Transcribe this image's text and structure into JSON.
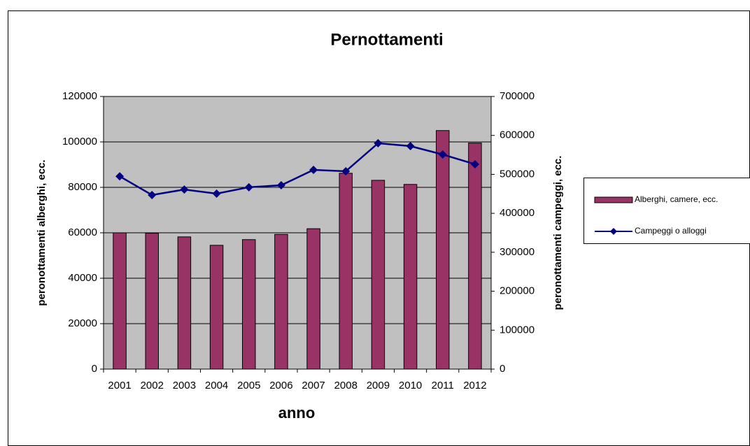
{
  "chart_data": {
    "type": "bar",
    "title": "Pernottamenti",
    "x_label": "anno",
    "y_label": "peronottamenti alberghi, ecc.",
    "y2_label": "peronottamenti campeggi, ecc.",
    "categories": [
      "2001",
      "2002",
      "2003",
      "2004",
      "2005",
      "2006",
      "2007",
      "2008",
      "2009",
      "2010",
      "2011",
      "2012"
    ],
    "series": [
      {
        "name": "Alberghi, camere, ecc.",
        "type": "bar",
        "color": "#993366",
        "values": [
          60000,
          59800,
          58200,
          54500,
          57000,
          59300,
          61800,
          86200,
          83100,
          81300,
          105000,
          99500
        ]
      },
      {
        "name": "Campeggi o alloggi",
        "type": "line",
        "axis": "y2",
        "color": "#000080",
        "values": [
          495000,
          447000,
          461000,
          450500,
          467000,
          472000,
          511500,
          508000,
          580000,
          572500,
          551000,
          526000
        ]
      }
    ],
    "ylim": [
      0,
      120000
    ],
    "yticks": [
      0,
      20000,
      40000,
      60000,
      80000,
      100000,
      120000
    ],
    "y2lim": [
      0,
      700000
    ],
    "y2ticks": [
      0,
      100000,
      200000,
      300000,
      400000,
      500000,
      600000,
      700000
    ],
    "plot_background": "#c0c0c0",
    "legend": "right"
  }
}
